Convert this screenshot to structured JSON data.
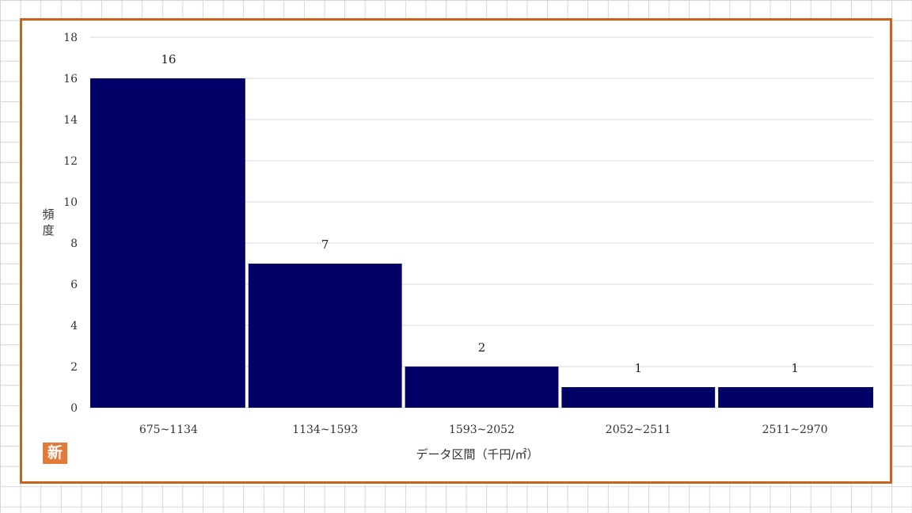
{
  "chart_data": {
    "type": "bar",
    "categories": [
      "675~1134",
      "1134~1593",
      "1593~2052",
      "2052~2511",
      "2511~2970"
    ],
    "values": [
      16,
      7,
      2,
      1,
      1
    ],
    "data_labels": [
      "16",
      "7",
      "2",
      "1",
      "1"
    ],
    "title": "",
    "xlabel": "データ区間（千円/㎡）",
    "ylabel": "頻度",
    "ylim": [
      0,
      18
    ],
    "yticks": [
      0,
      2,
      4,
      6,
      8,
      10,
      12,
      14,
      16,
      18
    ],
    "grid": true,
    "bar_color": "#000066"
  },
  "colors": {
    "frame": "#c8621c",
    "logo_bg": "#e07b3c",
    "grid_line": "#d9d9d9"
  },
  "logo": {
    "text": "新"
  }
}
